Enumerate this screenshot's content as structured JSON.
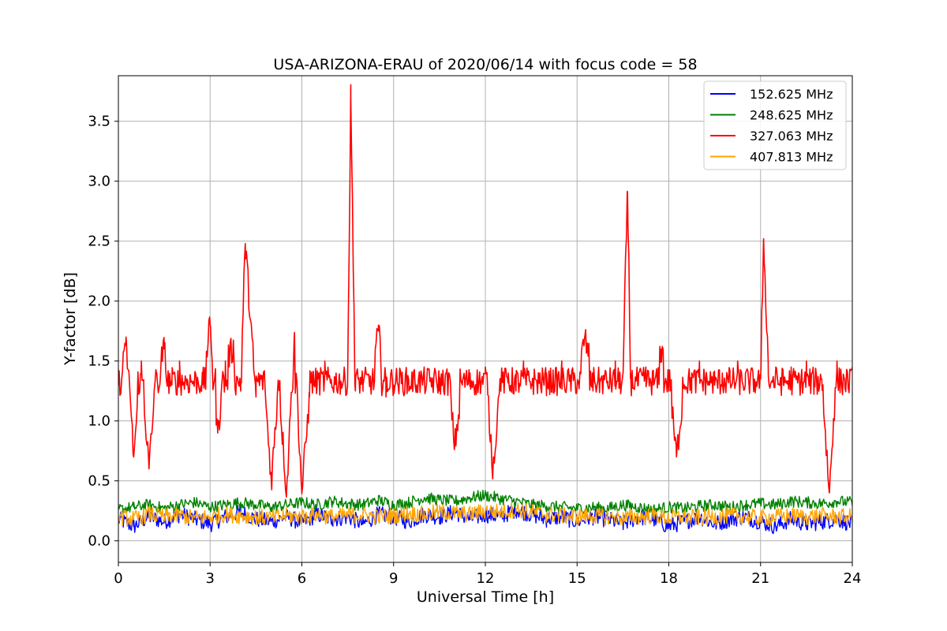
{
  "chart_data": {
    "type": "line",
    "title": "USA-ARIZONA-ERAU of 2020/06/14 with focus code = 58",
    "xlabel": "Universal Time [h]",
    "ylabel": "Y-factor [dB]",
    "xlim": [
      0,
      24
    ],
    "ylim": [
      -0.18,
      3.88
    ],
    "xticks": [
      0,
      3,
      6,
      9,
      12,
      15,
      18,
      21,
      24
    ],
    "xtick_labels": [
      "0",
      "3",
      "6",
      "9",
      "12",
      "15",
      "18",
      "21",
      "24"
    ],
    "yticks": [
      0.0,
      0.5,
      1.0,
      1.5,
      2.0,
      2.5,
      3.0,
      3.5
    ],
    "ytick_labels": [
      "0.0",
      "0.5",
      "1.0",
      "1.5",
      "2.0",
      "2.5",
      "3.0",
      "3.5"
    ],
    "grid": true,
    "legend_position": "top-right",
    "series": [
      {
        "name": "152.625 MHz",
        "color": "#0000ff",
        "x": [
          0,
          0.5,
          1,
          1.5,
          2,
          2.5,
          3,
          3.5,
          4,
          4.5,
          5,
          5.5,
          6,
          6.5,
          7,
          7.5,
          8,
          8.5,
          9,
          9.5,
          10,
          10.5,
          11,
          11.5,
          12,
          12.5,
          13,
          13.5,
          14,
          14.5,
          15,
          15.5,
          16,
          16.5,
          17,
          17.5,
          18,
          18.5,
          19,
          19.5,
          20,
          20.5,
          21,
          21.5,
          22,
          22.5,
          23,
          23.5,
          24
        ],
        "y": [
          0.18,
          0.12,
          0.2,
          0.16,
          0.22,
          0.18,
          0.14,
          0.2,
          0.24,
          0.18,
          0.16,
          0.2,
          0.15,
          0.22,
          0.18,
          0.2,
          0.14,
          0.22,
          0.2,
          0.16,
          0.22,
          0.2,
          0.24,
          0.18,
          0.22,
          0.2,
          0.26,
          0.22,
          0.18,
          0.2,
          0.16,
          0.2,
          0.18,
          0.14,
          0.2,
          0.18,
          0.12,
          0.16,
          0.2,
          0.14,
          0.18,
          0.2,
          0.16,
          0.12,
          0.18,
          0.14,
          0.16,
          0.18,
          0.14
        ]
      },
      {
        "name": "248.625 MHz",
        "color": "#008000",
        "x": [
          0,
          0.5,
          1,
          1.5,
          2,
          2.5,
          3,
          3.5,
          4,
          4.5,
          5,
          5.5,
          6,
          6.5,
          7,
          7.5,
          8,
          8.5,
          9,
          9.5,
          10,
          10.5,
          11,
          11.5,
          12,
          12.5,
          13,
          13.5,
          14,
          14.5,
          15,
          15.5,
          16,
          16.5,
          17,
          17.5,
          18,
          18.5,
          19,
          19.5,
          20,
          20.5,
          21,
          21.5,
          22,
          22.5,
          23,
          23.5,
          24
        ],
        "y": [
          0.26,
          0.28,
          0.3,
          0.27,
          0.3,
          0.32,
          0.28,
          0.3,
          0.32,
          0.3,
          0.28,
          0.3,
          0.32,
          0.3,
          0.33,
          0.31,
          0.3,
          0.34,
          0.3,
          0.32,
          0.36,
          0.34,
          0.33,
          0.36,
          0.38,
          0.35,
          0.33,
          0.3,
          0.29,
          0.28,
          0.27,
          0.28,
          0.27,
          0.3,
          0.28,
          0.26,
          0.28,
          0.27,
          0.29,
          0.3,
          0.28,
          0.3,
          0.31,
          0.3,
          0.33,
          0.32,
          0.31,
          0.33,
          0.32
        ]
      },
      {
        "name": "327.063 MHz",
        "color": "#ff0000",
        "x": [
          0,
          0.25,
          0.5,
          0.75,
          1,
          1.25,
          1.5,
          1.75,
          2,
          2.25,
          2.5,
          2.75,
          3,
          3.25,
          3.5,
          3.75,
          4,
          4.15,
          4.5,
          4.75,
          5,
          5.25,
          5.5,
          5.75,
          6,
          6.25,
          6.5,
          6.75,
          7,
          7.25,
          7.5,
          7.6,
          7.75,
          8,
          8.25,
          8.5,
          8.75,
          9,
          9.25,
          9.5,
          9.75,
          10,
          10.25,
          10.5,
          10.75,
          11,
          11.25,
          11.5,
          11.75,
          12,
          12.25,
          12.5,
          12.75,
          13,
          13.25,
          13.5,
          13.75,
          14,
          14.25,
          14.5,
          14.75,
          15,
          15.25,
          15.5,
          15.75,
          16,
          16.25,
          16.5,
          16.65,
          16.75,
          17,
          17.25,
          17.5,
          17.75,
          18,
          18.25,
          18.5,
          18.75,
          19,
          19.25,
          19.5,
          19.75,
          20,
          20.25,
          20.5,
          20.75,
          21,
          21.1,
          21.25,
          21.5,
          21.75,
          22,
          22.25,
          22.5,
          22.75,
          23,
          23.25,
          23.5,
          23.75,
          24
        ],
        "y": [
          1.3,
          1.7,
          0.7,
          1.5,
          0.6,
          1.4,
          1.6,
          1.3,
          1.5,
          1.35,
          1.4,
          1.3,
          1.8,
          0.9,
          1.5,
          1.6,
          1.3,
          2.48,
          1.2,
          1.4,
          0.5,
          1.3,
          0.4,
          1.7,
          0.4,
          1.2,
          1.3,
          1.5,
          1.28,
          1.3,
          1.4,
          3.7,
          1.25,
          1.3,
          1.28,
          1.75,
          1.2,
          1.3,
          1.35,
          1.25,
          1.3,
          1.45,
          1.3,
          1.25,
          1.4,
          0.8,
          1.3,
          1.4,
          1.3,
          1.45,
          0.6,
          1.35,
          1.4,
          1.25,
          1.5,
          1.3,
          1.35,
          1.4,
          1.3,
          1.5,
          1.35,
          1.3,
          1.7,
          1.4,
          1.35,
          1.3,
          1.5,
          1.4,
          2.9,
          1.4,
          1.3,
          1.45,
          1.3,
          1.6,
          1.35,
          0.7,
          1.3,
          1.4,
          1.5,
          1.35,
          1.3,
          1.4,
          1.35,
          1.5,
          1.3,
          1.4,
          1.35,
          2.52,
          1.5,
          1.45,
          1.3,
          1.45,
          1.4,
          1.5,
          1.3,
          1.35,
          0.4,
          1.5,
          1.35,
          1.45
        ]
      },
      {
        "name": "407.813 MHz",
        "color": "#ffa500",
        "x": [
          0,
          0.5,
          1,
          1.5,
          2,
          2.5,
          3,
          3.5,
          4,
          4.5,
          5,
          5.5,
          6,
          6.5,
          7,
          7.5,
          8,
          8.5,
          9,
          9.5,
          10,
          10.5,
          11,
          11.5,
          12,
          12.5,
          13,
          13.5,
          14,
          14.5,
          15,
          15.5,
          16,
          16.5,
          17,
          17.5,
          18,
          18.5,
          19,
          19.5,
          20,
          20.5,
          21,
          21.5,
          22,
          22.5,
          23,
          23.5,
          24
        ],
        "y": [
          0.2,
          0.18,
          0.22,
          0.2,
          0.21,
          0.19,
          0.2,
          0.22,
          0.21,
          0.2,
          0.19,
          0.21,
          0.2,
          0.22,
          0.2,
          0.21,
          0.22,
          0.2,
          0.21,
          0.23,
          0.22,
          0.24,
          0.23,
          0.22,
          0.25,
          0.24,
          0.26,
          0.24,
          0.22,
          0.21,
          0.2,
          0.21,
          0.2,
          0.19,
          0.2,
          0.21,
          0.19,
          0.2,
          0.19,
          0.2,
          0.21,
          0.2,
          0.19,
          0.2,
          0.21,
          0.2,
          0.21,
          0.2,
          0.2
        ]
      }
    ]
  }
}
